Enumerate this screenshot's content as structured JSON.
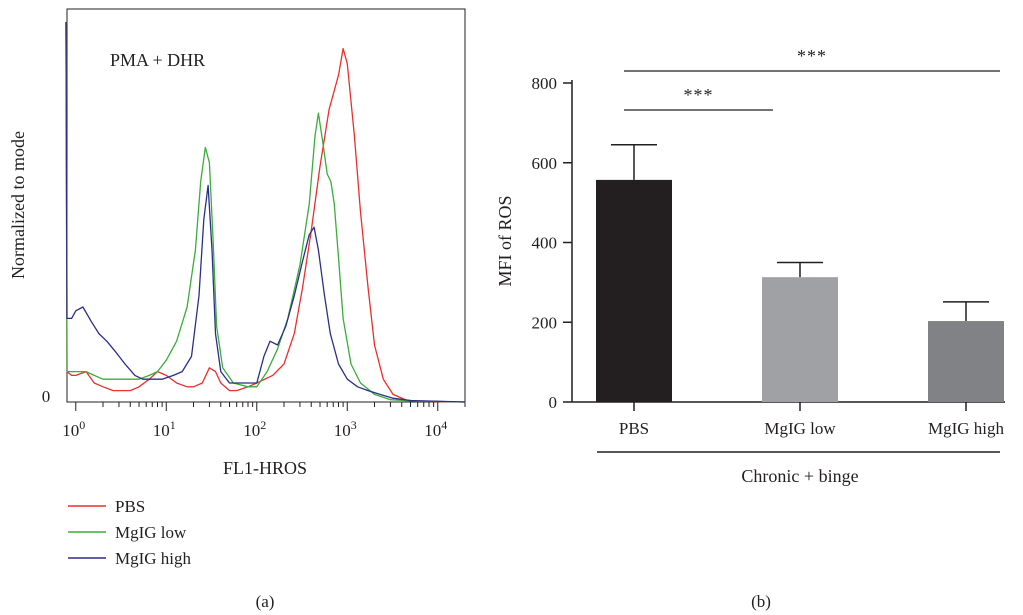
{
  "chart_data": [
    {
      "type": "line",
      "panel_label": "(a)",
      "annotation": "PMA + DHR",
      "xlabel": "FL1-HROS",
      "ylabel": "Normalized to mode",
      "x_scale": "log",
      "xlim": [
        0.8,
        20000
      ],
      "ylim": [
        0,
        100
      ],
      "x_tick_labels": [
        {
          "base": "10",
          "exp": "0"
        },
        {
          "base": "10",
          "exp": "1"
        },
        {
          "base": "10",
          "exp": "2"
        },
        {
          "base": "10",
          "exp": "3"
        },
        {
          "base": "10",
          "exp": "4"
        }
      ],
      "y_tick_labels": [
        "0"
      ],
      "legend": {
        "placement": "below"
      },
      "series": [
        {
          "name": "PBS",
          "color": "#e8302e",
          "points": [
            [
              0.78,
              100
            ],
            [
              0.8,
              8
            ],
            [
              0.9,
              7
            ],
            [
              1.0,
              7
            ],
            [
              1.3,
              8
            ],
            [
              1.6,
              5
            ],
            [
              2.0,
              4
            ],
            [
              2.6,
              3
            ],
            [
              3.2,
              3
            ],
            [
              4.0,
              3
            ],
            [
              5.0,
              4
            ],
            [
              6.5,
              6
            ],
            [
              8.0,
              8
            ],
            [
              10,
              7
            ],
            [
              13,
              5
            ],
            [
              17,
              4
            ],
            [
              20,
              4
            ],
            [
              25,
              5
            ],
            [
              30,
              9
            ],
            [
              35,
              8
            ],
            [
              40,
              5
            ],
            [
              50,
              3
            ],
            [
              60,
              3
            ],
            [
              80,
              4
            ],
            [
              100,
              5
            ],
            [
              150,
              7
            ],
            [
              200,
              10
            ],
            [
              260,
              18
            ],
            [
              320,
              30
            ],
            [
              400,
              45
            ],
            [
              500,
              62
            ],
            [
              630,
              77
            ],
            [
              800,
              86
            ],
            [
              900,
              93
            ],
            [
              1000,
              89
            ],
            [
              1200,
              70
            ],
            [
              1400,
              50
            ],
            [
              1700,
              30
            ],
            [
              2000,
              15
            ],
            [
              2500,
              6
            ],
            [
              3200,
              2
            ],
            [
              4500,
              0.5
            ],
            [
              6000,
              0.2
            ],
            [
              20000,
              0
            ]
          ]
        },
        {
          "name": "MgIG low",
          "color": "#3aad3a",
          "points": [
            [
              0.78,
              100
            ],
            [
              0.8,
              8
            ],
            [
              0.9,
              8
            ],
            [
              1.0,
              8
            ],
            [
              1.3,
              8
            ],
            [
              1.6,
              7
            ],
            [
              2.0,
              6
            ],
            [
              3.0,
              6
            ],
            [
              4.0,
              6
            ],
            [
              5.0,
              6
            ],
            [
              6.5,
              7
            ],
            [
              8.0,
              8
            ],
            [
              10,
              11
            ],
            [
              13,
              16
            ],
            [
              17,
              25
            ],
            [
              21,
              40
            ],
            [
              24,
              58
            ],
            [
              27,
              67
            ],
            [
              30,
              63
            ],
            [
              33,
              42
            ],
            [
              36,
              20
            ],
            [
              42,
              9
            ],
            [
              55,
              5
            ],
            [
              80,
              4
            ],
            [
              100,
              4
            ],
            [
              130,
              8
            ],
            [
              170,
              14
            ],
            [
              220,
              22
            ],
            [
              300,
              36
            ],
            [
              380,
              52
            ],
            [
              440,
              70
            ],
            [
              480,
              76
            ],
            [
              540,
              68
            ],
            [
              600,
              60
            ],
            [
              660,
              58
            ],
            [
              720,
              52
            ],
            [
              800,
              38
            ],
            [
              900,
              22
            ],
            [
              1100,
              10
            ],
            [
              1400,
              5
            ],
            [
              2000,
              2
            ],
            [
              3000,
              0.6
            ],
            [
              5000,
              0.3
            ],
            [
              20000,
              0
            ]
          ]
        },
        {
          "name": "MgIG high",
          "color": "#2b2f86",
          "points": [
            [
              0.78,
              100
            ],
            [
              0.8,
              22
            ],
            [
              0.9,
              22
            ],
            [
              1.0,
              24
            ],
            [
              1.2,
              25
            ],
            [
              1.5,
              21
            ],
            [
              1.8,
              18
            ],
            [
              2.2,
              16
            ],
            [
              2.8,
              13
            ],
            [
              3.5,
              10
            ],
            [
              4.5,
              7
            ],
            [
              5.5,
              6
            ],
            [
              7.0,
              6
            ],
            [
              9.0,
              6
            ],
            [
              12,
              7
            ],
            [
              15,
              8
            ],
            [
              19,
              12
            ],
            [
              23,
              28
            ],
            [
              26,
              48
            ],
            [
              29,
              57
            ],
            [
              32,
              40
            ],
            [
              35,
              18
            ],
            [
              40,
              8
            ],
            [
              50,
              5
            ],
            [
              70,
              5
            ],
            [
              100,
              5
            ],
            [
              120,
              12
            ],
            [
              140,
              16
            ],
            [
              170,
              15
            ],
            [
              210,
              20
            ],
            [
              260,
              28
            ],
            [
              320,
              37
            ],
            [
              380,
              44
            ],
            [
              430,
              46
            ],
            [
              480,
              40
            ],
            [
              560,
              28
            ],
            [
              650,
              18
            ],
            [
              800,
              10
            ],
            [
              1000,
              6
            ],
            [
              1300,
              4
            ],
            [
              1700,
              3
            ],
            [
              2300,
              2
            ],
            [
              3200,
              1
            ],
            [
              5000,
              0.4
            ],
            [
              20000,
              0
            ]
          ]
        }
      ]
    },
    {
      "type": "bar",
      "panel_label": "(b)",
      "categories": [
        "PBS",
        "MgIG low",
        "MgIG high"
      ],
      "values": [
        557,
        313,
        203
      ],
      "errors": [
        88,
        37,
        48
      ],
      "colors": [
        "#231f20",
        "#9fa1a4",
        "#818285"
      ],
      "ylabel": "MFI of ROS",
      "xlabel": "Chronic + binge",
      "ylim": [
        0,
        800
      ],
      "yticks": [
        0,
        200,
        400,
        600,
        800
      ],
      "significance": [
        {
          "from": 0,
          "to": 1,
          "label": "***"
        },
        {
          "from": 0,
          "to": 2,
          "label": "***"
        }
      ],
      "grid": false
    }
  ]
}
